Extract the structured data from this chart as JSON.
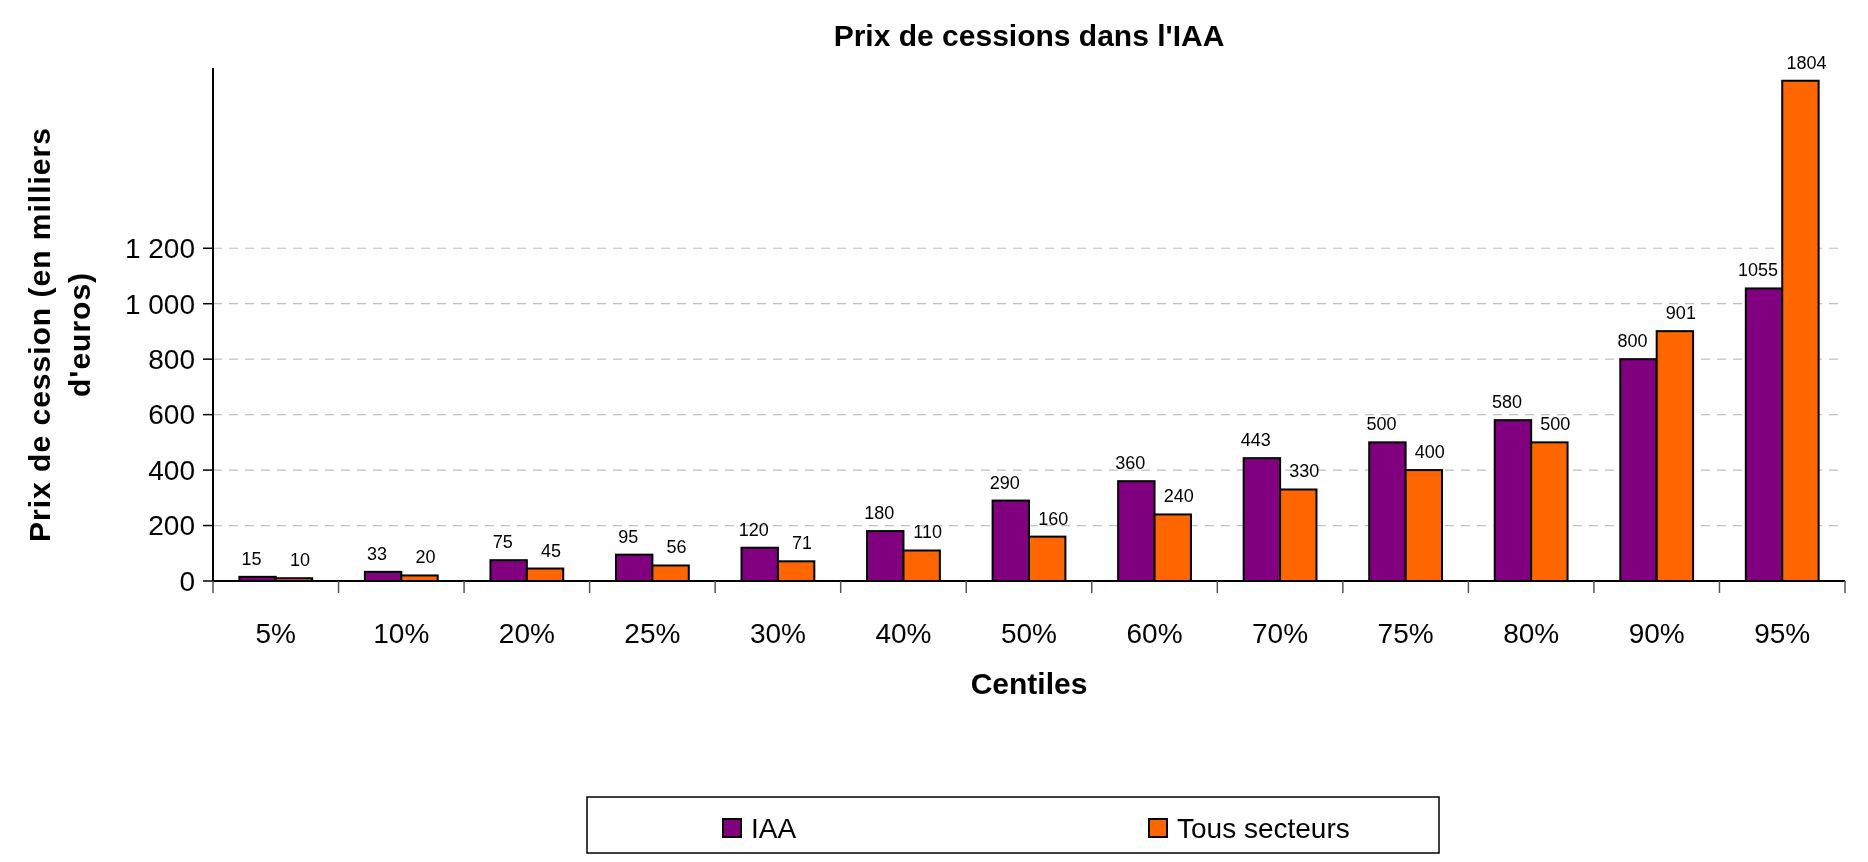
{
  "chart_data": {
    "type": "bar",
    "title": "Prix de cessions dans l'IAA",
    "xlabel": "Centiles",
    "ylabel": "Prix de cession (en milliers d'euros)",
    "categories": [
      "5%",
      "10%",
      "20%",
      "25%",
      "30%",
      "40%",
      "50%",
      "60%",
      "70%",
      "75%",
      "80%",
      "90%",
      "95%"
    ],
    "series": [
      {
        "name": "IAA",
        "color": "#800080",
        "values": [
          15,
          33,
          75,
          95,
          120,
          180,
          290,
          360,
          443,
          500,
          580,
          800,
          1055
        ]
      },
      {
        "name": "Tous secteurs",
        "color": "#ff6600",
        "values": [
          10,
          20,
          45,
          56,
          71,
          110,
          160,
          240,
          330,
          400,
          500,
          901,
          1804
        ]
      }
    ],
    "ylim": [
      0,
      1850
    ],
    "yticks": [
      0,
      200,
      400,
      600,
      800,
      {
        "value": 1000,
        "label": "1 000"
      },
      {
        "value": 1200,
        "label": "1 200"
      }
    ],
    "grid": "y",
    "legend": "bottom",
    "data_labels": true
  }
}
